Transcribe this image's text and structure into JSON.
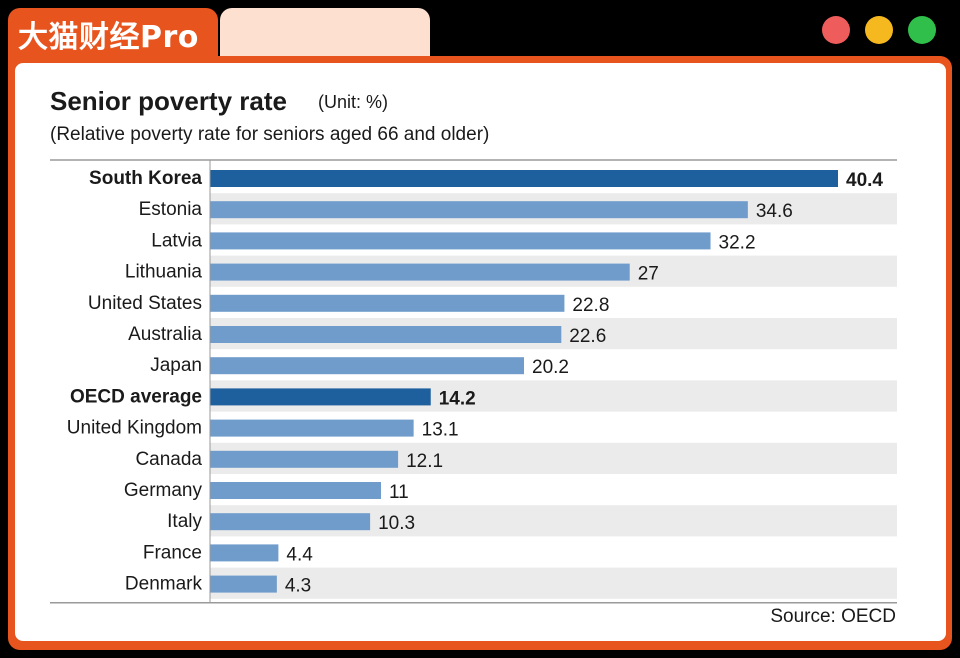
{
  "brand": {
    "name": "大猫财经Pro"
  },
  "colors": {
    "brand_orange": "#e8541e",
    "tab_peach": "#fde0cf",
    "bar_highlight": "#1e5f9e",
    "bar_normal": "#6f9ccb",
    "row_stripe": "#ebebeb"
  },
  "window_controls": [
    "close",
    "minimize",
    "maximize"
  ],
  "chart_data": {
    "type": "bar",
    "orientation": "horizontal",
    "title": "Senior poverty rate",
    "unit": "(Unit: %)",
    "subtitle": "(Relative poverty rate for seniors aged 66 and older)",
    "source": "Source: OECD",
    "categories": [
      "South Korea",
      "Estonia",
      "Latvia",
      "Lithuania",
      "United States",
      "Australia",
      "Japan",
      "OECD average",
      "United Kingdom",
      "Canada",
      "Germany",
      "Italy",
      "France",
      "Denmark"
    ],
    "values": [
      40.4,
      34.6,
      32.2,
      27,
      22.8,
      22.6,
      20.2,
      14.2,
      13.1,
      12.1,
      11,
      10.3,
      4.4,
      4.3
    ],
    "value_labels": [
      "40.4",
      "34.6",
      "32.2",
      "27",
      "22.8",
      "22.6",
      "20.2",
      "14.2",
      "13.1",
      "12.1",
      "11",
      "10.3",
      "4.4",
      "4.3"
    ],
    "highlighted": [
      "South Korea",
      "OECD average"
    ],
    "xlim": [
      0,
      42
    ],
    "grid": false,
    "striped_rows": true
  }
}
